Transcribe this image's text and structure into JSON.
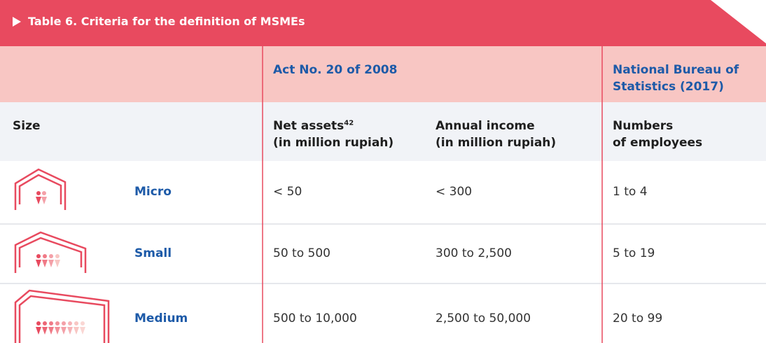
{
  "table": {
    "title": "Table 6. Criteria for the definition of MSMEs",
    "group_headers": [
      [
        "Act No. 20 of 2008"
      ],
      [
        "National Bureau of",
        "Statistics (2017)"
      ]
    ],
    "columns": {
      "size": "Size",
      "net_assets": [
        "Net assets",
        "(in million rupiah)"
      ],
      "net_assets_note": "42",
      "annual_income": [
        "Annual income",
        "(in million rupiah)"
      ],
      "employees": [
        "Numbers",
        "of employees"
      ]
    },
    "rows": [
      [
        "Micro",
        "< 50",
        "< 300",
        "1 to 4"
      ],
      [
        "Small",
        "50 to 500",
        "300 to 2,500",
        "5 to 19"
      ],
      [
        "Medium",
        "500 to 10,000",
        "2,500 to 50,000",
        "20 to 99"
      ]
    ]
  }
}
